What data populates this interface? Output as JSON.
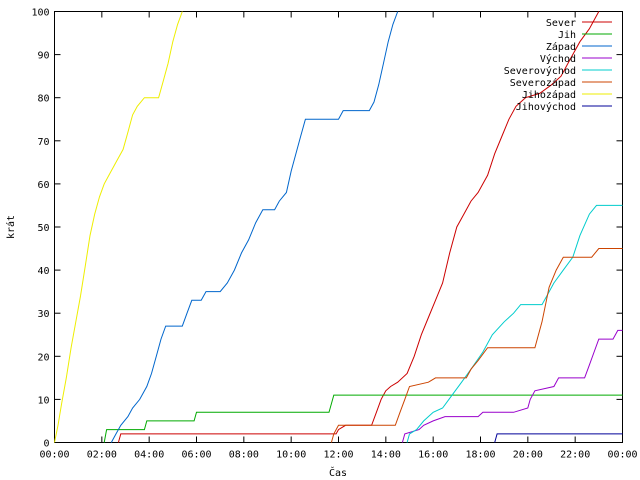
{
  "chart_data": {
    "type": "line",
    "xlabel": "Čas",
    "ylabel": "krát",
    "x_ticks": [
      "00:00",
      "02:00",
      "04:00",
      "06:00",
      "08:00",
      "10:00",
      "12:00",
      "14:00",
      "16:00",
      "18:00",
      "20:00",
      "22:00",
      "00:00"
    ],
    "y_ticks": [
      "0",
      "10",
      "20",
      "30",
      "40",
      "50",
      "60",
      "70",
      "80",
      "90",
      "100"
    ],
    "xlim_hours": [
      0,
      24
    ],
    "ylim": [
      0,
      100
    ],
    "grid": false,
    "legend_position": "top-right",
    "series": [
      {
        "name": "Sever",
        "color": "#cc0000",
        "points": [
          [
            2.7,
            0
          ],
          [
            2.8,
            2
          ],
          [
            11.9,
            2
          ],
          [
            12.0,
            3
          ],
          [
            12.3,
            4
          ],
          [
            13.4,
            4
          ],
          [
            13.6,
            7
          ],
          [
            13.8,
            10
          ],
          [
            14.0,
            12
          ],
          [
            14.2,
            13
          ],
          [
            14.5,
            14
          ],
          [
            14.9,
            16
          ],
          [
            15.2,
            20
          ],
          [
            15.5,
            25
          ],
          [
            15.8,
            29
          ],
          [
            16.1,
            33
          ],
          [
            16.4,
            37
          ],
          [
            16.7,
            44
          ],
          [
            17.0,
            50
          ],
          [
            17.3,
            53
          ],
          [
            17.6,
            56
          ],
          [
            17.9,
            58
          ],
          [
            18.3,
            62
          ],
          [
            18.6,
            67
          ],
          [
            18.9,
            71
          ],
          [
            19.2,
            75
          ],
          [
            19.5,
            78
          ],
          [
            19.9,
            80
          ],
          [
            20.5,
            81
          ],
          [
            21.0,
            83
          ],
          [
            21.4,
            85
          ],
          [
            21.8,
            89
          ],
          [
            22.2,
            93
          ],
          [
            22.6,
            96
          ],
          [
            23.0,
            100
          ]
        ]
      },
      {
        "name": "Jih",
        "color": "#00aa00",
        "points": [
          [
            2.1,
            0
          ],
          [
            2.2,
            3
          ],
          [
            3.8,
            3
          ],
          [
            3.9,
            5
          ],
          [
            5.9,
            5
          ],
          [
            6.0,
            7
          ],
          [
            11.6,
            7
          ],
          [
            11.7,
            9
          ],
          [
            11.8,
            11
          ],
          [
            24,
            11
          ]
        ]
      },
      {
        "name": "Západ",
        "color": "#0066cc",
        "points": [
          [
            2.4,
            0
          ],
          [
            2.6,
            2
          ],
          [
            2.8,
            4
          ],
          [
            3.1,
            6
          ],
          [
            3.3,
            8
          ],
          [
            3.6,
            10
          ],
          [
            3.9,
            13
          ],
          [
            4.1,
            16
          ],
          [
            4.3,
            20
          ],
          [
            4.5,
            24
          ],
          [
            4.7,
            27
          ],
          [
            5.4,
            27
          ],
          [
            5.6,
            30
          ],
          [
            5.8,
            33
          ],
          [
            6.2,
            33
          ],
          [
            6.4,
            35
          ],
          [
            7.0,
            35
          ],
          [
            7.3,
            37
          ],
          [
            7.6,
            40
          ],
          [
            7.9,
            44
          ],
          [
            8.2,
            47
          ],
          [
            8.5,
            51
          ],
          [
            8.8,
            54
          ],
          [
            9.3,
            54
          ],
          [
            9.5,
            56
          ],
          [
            9.8,
            58
          ],
          [
            10.0,
            63
          ],
          [
            10.2,
            67
          ],
          [
            10.4,
            71
          ],
          [
            10.6,
            75
          ],
          [
            12.0,
            75
          ],
          [
            12.2,
            77
          ],
          [
            13.3,
            77
          ],
          [
            13.5,
            79
          ],
          [
            13.7,
            83
          ],
          [
            13.9,
            88
          ],
          [
            14.1,
            93
          ],
          [
            14.3,
            97
          ],
          [
            14.5,
            100
          ]
        ]
      },
      {
        "name": "Východ",
        "color": "#9900cc",
        "points": [
          [
            14.7,
            0
          ],
          [
            14.8,
            2
          ],
          [
            15.4,
            3
          ],
          [
            15.6,
            4
          ],
          [
            16.0,
            5
          ],
          [
            16.5,
            6
          ],
          [
            17.9,
            6
          ],
          [
            18.1,
            7
          ],
          [
            19.4,
            7
          ],
          [
            20.0,
            8
          ],
          [
            20.1,
            10
          ],
          [
            20.3,
            12
          ],
          [
            21.1,
            13
          ],
          [
            21.3,
            15
          ],
          [
            22.4,
            15
          ],
          [
            22.6,
            18
          ],
          [
            22.8,
            21
          ],
          [
            23.0,
            24
          ],
          [
            23.6,
            24
          ],
          [
            23.8,
            26
          ],
          [
            24,
            26
          ]
        ]
      },
      {
        "name": "Severovýchod",
        "color": "#00cccc",
        "points": [
          [
            14.9,
            0
          ],
          [
            15.0,
            2
          ],
          [
            15.3,
            3
          ],
          [
            15.6,
            5
          ],
          [
            16.0,
            7
          ],
          [
            16.4,
            8
          ],
          [
            16.8,
            11
          ],
          [
            17.2,
            14
          ],
          [
            17.6,
            17
          ],
          [
            18.1,
            21
          ],
          [
            18.5,
            25
          ],
          [
            19.0,
            28
          ],
          [
            19.4,
            30
          ],
          [
            19.7,
            32
          ],
          [
            20.6,
            32
          ],
          [
            20.8,
            34
          ],
          [
            21.1,
            37
          ],
          [
            21.5,
            40
          ],
          [
            21.9,
            43
          ],
          [
            22.2,
            48
          ],
          [
            22.6,
            53
          ],
          [
            22.9,
            55
          ],
          [
            24,
            55
          ]
        ]
      },
      {
        "name": "Severozápad",
        "color": "#cc4400",
        "points": [
          [
            11.7,
            0
          ],
          [
            11.8,
            2
          ],
          [
            12.0,
            4
          ],
          [
            14.4,
            4
          ],
          [
            14.6,
            7
          ],
          [
            14.8,
            10
          ],
          [
            15.0,
            13
          ],
          [
            15.8,
            14
          ],
          [
            16.1,
            15
          ],
          [
            17.4,
            15
          ],
          [
            17.6,
            17
          ],
          [
            17.9,
            19
          ],
          [
            18.3,
            22
          ],
          [
            19.6,
            22
          ],
          [
            20.3,
            22
          ],
          [
            20.6,
            28
          ],
          [
            20.9,
            36
          ],
          [
            21.2,
            40
          ],
          [
            21.5,
            43
          ],
          [
            22.7,
            43
          ],
          [
            23.0,
            45
          ],
          [
            24,
            45
          ]
        ]
      },
      {
        "name": "Jihozápad",
        "color": "#eeee00",
        "points": [
          [
            0.0,
            0
          ],
          [
            0.15,
            4
          ],
          [
            0.3,
            9
          ],
          [
            0.5,
            15
          ],
          [
            0.7,
            22
          ],
          [
            0.9,
            28
          ],
          [
            1.1,
            34
          ],
          [
            1.3,
            41
          ],
          [
            1.5,
            48
          ],
          [
            1.7,
            53
          ],
          [
            1.9,
            57
          ],
          [
            2.1,
            60
          ],
          [
            2.3,
            62
          ],
          [
            2.6,
            65
          ],
          [
            2.9,
            68
          ],
          [
            3.1,
            72
          ],
          [
            3.3,
            76
          ],
          [
            3.5,
            78
          ],
          [
            3.8,
            80
          ],
          [
            4.4,
            80
          ],
          [
            4.6,
            84
          ],
          [
            4.8,
            88
          ],
          [
            5.0,
            93
          ],
          [
            5.2,
            97
          ],
          [
            5.4,
            100
          ]
        ]
      },
      {
        "name": "Jihovýchod",
        "color": "#000099",
        "points": [
          [
            18.6,
            0
          ],
          [
            18.7,
            2
          ],
          [
            24,
            2
          ]
        ]
      }
    ]
  }
}
